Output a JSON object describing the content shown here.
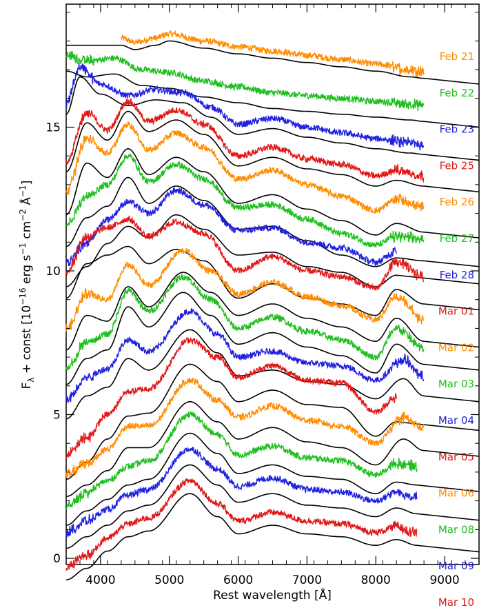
{
  "chart_data": {
    "type": "line",
    "xlabel": "Rest wavelength [Å]",
    "ylabel": "F_λ + const [10^-16 erg s^-1 cm^-2 Å^-1]",
    "ylabel_parts": {
      "main": "F",
      "sub": "λ",
      "const": " + const [10",
      "exp1": "−16",
      "erg": " erg s",
      "exp2": "−1",
      "cm": " cm",
      "exp3": "−2",
      "ang": " Å",
      "exp4": "−1",
      "close": "]"
    },
    "xlim": [
      3500,
      9500
    ],
    "ylim": [
      0,
      19
    ],
    "xticks": [
      4000,
      5000,
      6000,
      7000,
      8000,
      9000
    ],
    "xtick_labels": [
      "4000",
      "5000",
      "6000",
      "7000",
      "8000",
      "9000"
    ],
    "yticks": [
      0,
      5,
      10,
      15
    ],
    "ytick_labels": [
      "0",
      "5",
      "10",
      "15"
    ],
    "grid": false,
    "legend": "labels-at-right",
    "colors": {
      "Feb": "#ff8c00",
      "orange": "#ff8c00",
      "green": "#1fbf1f",
      "blue": "#2020e0",
      "red": "#e01818",
      "model": "#000000"
    },
    "series": [
      {
        "name": "Feb 21",
        "color": "#ff8c00",
        "wmin": 4300,
        "wmax": 8700,
        "offset": 16.9,
        "model_offset": 16.8,
        "x": [
          4300,
          4500,
          4800,
          5000,
          5500,
          6000,
          6500,
          7000,
          7500,
          8000,
          8500,
          8700
        ],
        "y": [
          18.1,
          17.95,
          18.1,
          18.25,
          18.0,
          17.8,
          17.65,
          17.5,
          17.35,
          17.2,
          17.0,
          16.95
        ]
      },
      {
        "name": "Feb 22",
        "color": "#1fbf1f",
        "wmin": 3500,
        "wmax": 8700,
        "offset": 15.7,
        "model_offset": 15.3,
        "x": [
          3500,
          3800,
          4200,
          4600,
          5000,
          5500,
          6000,
          6500,
          7000,
          7500,
          8000,
          8500,
          8700
        ],
        "y": [
          17.5,
          17.3,
          17.4,
          17.0,
          16.9,
          16.6,
          16.4,
          16.2,
          16.1,
          16.0,
          15.9,
          15.8,
          15.75
        ]
      },
      {
        "name": "Feb 23",
        "color": "#2020e0",
        "wmin": 3500,
        "wmax": 8700,
        "offset": 14.4,
        "model_offset": 14.2,
        "x": [
          3500,
          3700,
          4000,
          4400,
          4800,
          5200,
          5600,
          6000,
          6500,
          7000,
          7500,
          8000,
          8500,
          8700
        ],
        "y": [
          15.8,
          17.1,
          16.5,
          16.1,
          16.3,
          16.2,
          15.7,
          15.1,
          15.3,
          15.0,
          14.8,
          14.6,
          14.45,
          14.4
        ]
      },
      {
        "name": "Feb 25",
        "color": "#e01818",
        "wmin": 3500,
        "wmax": 8700,
        "offset": 13.3,
        "model_offset": 13.1,
        "x": [
          3500,
          3800,
          4100,
          4400,
          4700,
          5100,
          5500,
          6000,
          6500,
          7000,
          7500,
          8000,
          8300,
          8700
        ],
        "y": [
          13.8,
          15.5,
          14.9,
          15.9,
          15.2,
          15.6,
          15.1,
          14.0,
          14.3,
          13.9,
          13.7,
          13.3,
          13.5,
          13.3
        ]
      },
      {
        "name": "Feb 26",
        "color": "#ff8c00",
        "wmin": 3500,
        "wmax": 8700,
        "offset": 12.3,
        "model_offset": 11.6,
        "x": [
          3500,
          3800,
          4100,
          4400,
          4700,
          5100,
          5500,
          6000,
          6500,
          7000,
          7500,
          8000,
          8300,
          8700
        ],
        "y": [
          12.8,
          14.6,
          14.1,
          15.1,
          14.2,
          14.8,
          14.3,
          13.2,
          13.5,
          13.0,
          12.6,
          12.1,
          12.5,
          12.2
        ]
      },
      {
        "name": "Feb 27",
        "color": "#1fbf1f",
        "wmin": 3500,
        "wmax": 8700,
        "offset": 11.2,
        "model_offset": 10.6,
        "x": [
          3500,
          3800,
          4100,
          4400,
          4700,
          5100,
          5500,
          6000,
          6500,
          7000,
          7500,
          8000,
          8300,
          8700
        ],
        "y": [
          11.6,
          12.6,
          13.0,
          14.0,
          13.1,
          13.7,
          13.2,
          12.2,
          12.3,
          11.8,
          11.3,
          10.9,
          11.2,
          11.1
        ]
      },
      {
        "name": "Feb 28",
        "color": "#2020e0",
        "wmin": 3500,
        "wmax": 8300,
        "offset": 10.6,
        "model_offset": 9.9,
        "x": [
          3500,
          3800,
          4100,
          4400,
          4700,
          5100,
          5500,
          6000,
          6500,
          7000,
          7500,
          8000,
          8300
        ],
        "y": [
          10.3,
          11.0,
          11.8,
          12.4,
          12.0,
          12.8,
          12.3,
          11.4,
          11.5,
          11.0,
          10.8,
          10.3,
          10.7
        ]
      },
      {
        "name": "Mar 01",
        "color": "#e01818",
        "wmin": 3500,
        "wmax": 8700,
        "offset": 9.8,
        "model_offset": 9.0,
        "x": [
          3500,
          3800,
          4100,
          4400,
          4700,
          5100,
          5500,
          6000,
          6500,
          7000,
          7500,
          8000,
          8300,
          8700
        ],
        "y": [
          10.0,
          11.2,
          11.5,
          11.8,
          11.2,
          11.7,
          11.3,
          10.0,
          10.5,
          10.0,
          9.8,
          9.4,
          10.3,
          9.8
        ]
      },
      {
        "name": "Mar 02",
        "color": "#ff8c00",
        "wmin": 3500,
        "wmax": 8700,
        "offset": 8.2,
        "model_offset": 7.6,
        "x": [
          3500,
          3800,
          4100,
          4400,
          4700,
          5200,
          5600,
          6000,
          6500,
          7000,
          7500,
          8000,
          8300,
          8700
        ],
        "y": [
          8.0,
          9.2,
          9.0,
          10.2,
          9.5,
          10.7,
          10.0,
          9.2,
          9.6,
          9.1,
          8.8,
          8.3,
          9.1,
          8.3
        ]
      },
      {
        "name": "Mar 03",
        "color": "#1fbf1f",
        "wmin": 3500,
        "wmax": 8700,
        "offset": 7.2,
        "model_offset": 6.8,
        "x": [
          3500,
          3800,
          4100,
          4400,
          4700,
          5200,
          5600,
          6000,
          6500,
          7000,
          7500,
          8000,
          8300,
          8700
        ],
        "y": [
          6.6,
          7.5,
          7.8,
          9.3,
          8.6,
          9.8,
          9.0,
          8.0,
          8.4,
          7.9,
          7.6,
          7.0,
          8.0,
          7.3
        ]
      },
      {
        "name": "Mar 04",
        "color": "#2020e0",
        "wmin": 3500,
        "wmax": 8700,
        "offset": 6.3,
        "model_offset": 5.8,
        "x": [
          3500,
          3800,
          4100,
          4400,
          4700,
          5300,
          5700,
          6000,
          6500,
          7000,
          7500,
          8000,
          8400,
          8700
        ],
        "y": [
          5.5,
          6.3,
          6.6,
          7.6,
          7.2,
          8.6,
          7.8,
          7.0,
          7.2,
          6.8,
          6.7,
          6.2,
          6.9,
          6.3
        ]
      },
      {
        "name": "Mar 05",
        "color": "#e01818",
        "wmin": 3500,
        "wmax": 8300,
        "offset": 5.6,
        "model_offset": 4.9,
        "x": [
          3500,
          3800,
          4100,
          4400,
          4700,
          5300,
          5700,
          6000,
          6500,
          7000,
          7500,
          8000,
          8300
        ],
        "y": [
          3.6,
          4.2,
          5.0,
          5.8,
          5.9,
          7.6,
          7.0,
          6.3,
          6.7,
          6.2,
          6.1,
          5.1,
          5.6
        ]
      },
      {
        "name": "Mar 06",
        "color": "#ff8c00",
        "wmin": 3500,
        "wmax": 8700,
        "offset": 4.5,
        "model_offset": 3.9,
        "x": [
          3500,
          3800,
          4100,
          4400,
          4700,
          5300,
          5700,
          6000,
          6500,
          7000,
          7500,
          8000,
          8400,
          8700
        ],
        "y": [
          2.9,
          3.3,
          3.8,
          4.6,
          4.6,
          6.2,
          5.5,
          4.9,
          5.3,
          4.8,
          4.6,
          4.0,
          4.9,
          4.5
        ]
      },
      {
        "name": "Mar 08",
        "color": "#1fbf1f",
        "wmin": 3500,
        "wmax": 8600,
        "offset": 3.3,
        "model_offset": 2.8,
        "x": [
          3500,
          3800,
          4100,
          4400,
          4700,
          5300,
          5700,
          6000,
          6500,
          7000,
          7500,
          8000,
          8300,
          8600
        ],
        "y": [
          1.8,
          2.3,
          2.7,
          3.2,
          3.4,
          5.0,
          4.3,
          3.6,
          3.9,
          3.5,
          3.4,
          2.9,
          3.3,
          3.2
        ]
      },
      {
        "name": "Mar 09",
        "color": "#2020e0",
        "wmin": 3500,
        "wmax": 8600,
        "offset": 2.3,
        "model_offset": 1.9,
        "x": [
          3500,
          3800,
          4100,
          4400,
          4700,
          5300,
          5700,
          6000,
          6500,
          7000,
          7500,
          8000,
          8300,
          8600
        ],
        "y": [
          0.9,
          1.3,
          1.7,
          2.2,
          2.4,
          3.8,
          3.1,
          2.5,
          2.8,
          2.4,
          2.3,
          2.0,
          2.3,
          2.1
        ]
      },
      {
        "name": "Mar 10",
        "color": "#e01818",
        "wmin": 3500,
        "wmax": 8600,
        "offset": 1.2,
        "model_offset": 0.9,
        "x": [
          3500,
          3800,
          4100,
          4400,
          4700,
          5300,
          5700,
          6000,
          6500,
          7000,
          7500,
          8000,
          8300,
          8600
        ],
        "y": [
          -0.3,
          0.1,
          0.7,
          1.2,
          1.4,
          2.7,
          1.9,
          1.3,
          1.6,
          1.3,
          1.2,
          0.9,
          1.1,
          0.9
        ]
      }
    ]
  }
}
